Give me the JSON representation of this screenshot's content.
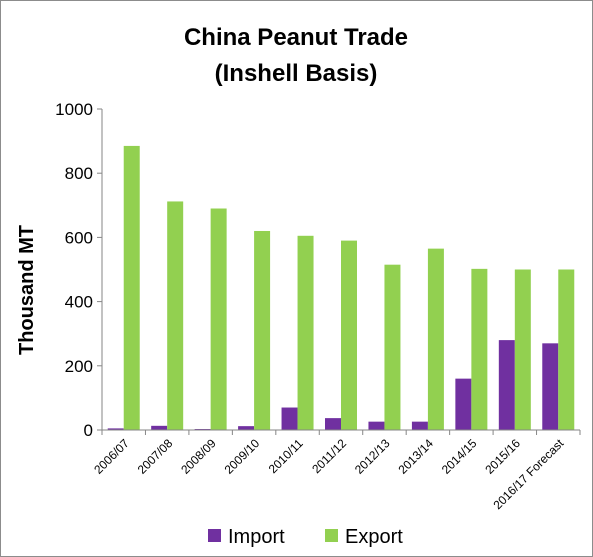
{
  "chart_data": {
    "type": "bar",
    "title": [
      "China Peanut Trade",
      "(Inshell Basis)"
    ],
    "ylabel": "Thousand  MT",
    "xlabel": "",
    "ylim": [
      0,
      1000
    ],
    "yticks": [
      0,
      200,
      400,
      600,
      800,
      1000
    ],
    "categories": [
      "2006/07",
      "2007/08",
      "2008/09",
      "2009/10",
      "2010/11",
      "2011/12",
      "2012/13",
      "2013/14",
      "2014/15",
      "2015/16",
      "2016/17 Forecast"
    ],
    "series": [
      {
        "name": "Import",
        "color": "#7030a0",
        "values": [
          5,
          13,
          3,
          12,
          70,
          37,
          26,
          26,
          160,
          280,
          270
        ]
      },
      {
        "name": "Export",
        "color": "#92d050",
        "values": [
          885,
          712,
          690,
          620,
          605,
          590,
          515,
          565,
          502,
          500,
          500
        ]
      }
    ],
    "grid": false,
    "legend_position": "bottom"
  }
}
